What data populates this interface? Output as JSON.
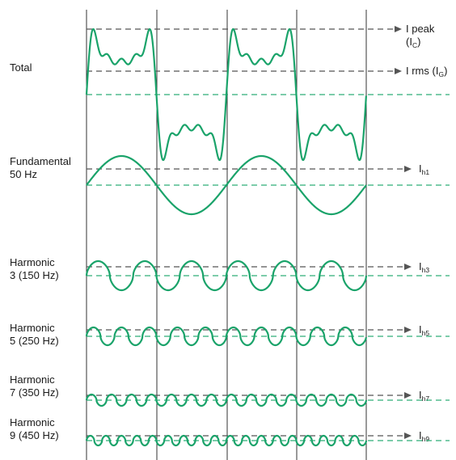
{
  "colors": {
    "wave": "#1aa36a",
    "baseline": "#2fae78",
    "dashed_arrow": "#555555",
    "grid": "#333333",
    "text": "#1a1a1a"
  },
  "rows": [
    {
      "id": "total",
      "label_lines": [
        "Total"
      ],
      "values": [
        {
          "main": "I peak",
          "sub_wrap": [
            "(I",
            "C",
            ")"
          ]
        },
        {
          "main": "I rms (I",
          "sub": "G",
          "tail": ")"
        }
      ]
    },
    {
      "id": "fundamental",
      "label_lines": [
        "Fundamental",
        "50 Hz"
      ],
      "values": [
        {
          "main": "I",
          "sub": "h1"
        }
      ]
    },
    {
      "id": "h3",
      "label_lines": [
        "Harmonic",
        "3 (150 Hz)"
      ],
      "values": [
        {
          "main": "I",
          "sub": "h3"
        }
      ]
    },
    {
      "id": "h5",
      "label_lines": [
        "Harmonic",
        "5 (250 Hz)"
      ],
      "values": [
        {
          "main": "I",
          "sub": "h5"
        }
      ]
    },
    {
      "id": "h7",
      "label_lines": [
        "Harmonic",
        "7 (350 Hz)"
      ],
      "values": [
        {
          "main": "I",
          "sub": "h7"
        }
      ]
    },
    {
      "id": "h9",
      "label_lines": [
        "Harmonic",
        "9 (450 Hz)"
      ],
      "values": [
        {
          "main": "I",
          "sub": "h9"
        }
      ]
    }
  ]
}
